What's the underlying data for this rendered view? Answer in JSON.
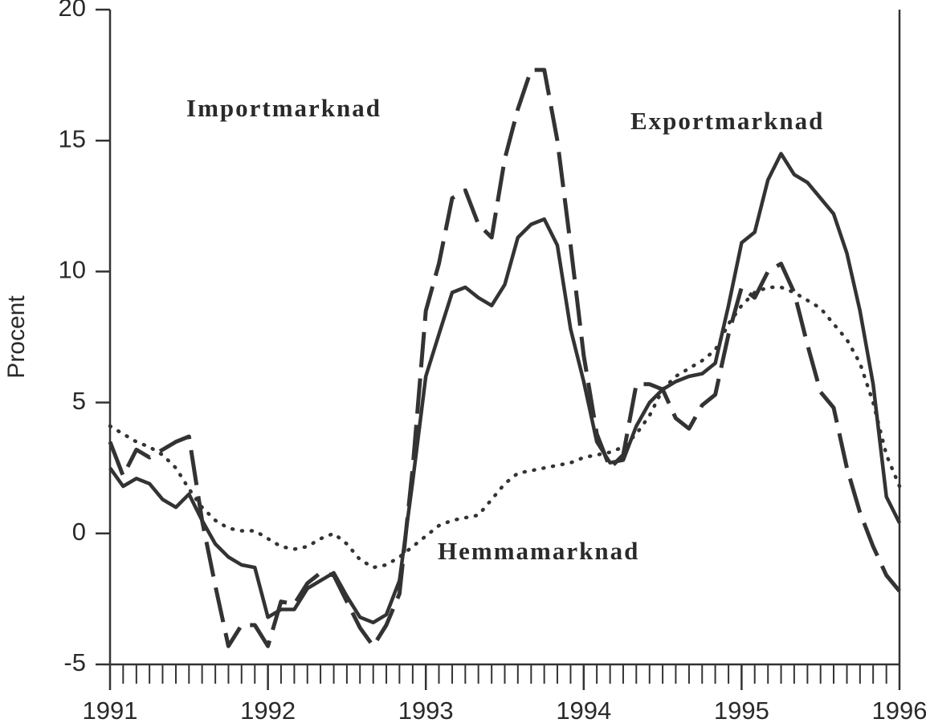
{
  "chart_data": {
    "type": "line",
    "y_label": "Procent",
    "x": [
      1991,
      1991.083,
      1991.167,
      1991.25,
      1991.333,
      1991.417,
      1991.5,
      1991.583,
      1991.667,
      1991.75,
      1991.833,
      1991.917,
      1992,
      1992.083,
      1992.167,
      1992.25,
      1992.333,
      1992.417,
      1992.5,
      1992.583,
      1992.667,
      1992.75,
      1992.833,
      1992.917,
      1993,
      1993.083,
      1993.167,
      1993.25,
      1993.333,
      1993.417,
      1993.5,
      1993.583,
      1993.667,
      1993.75,
      1993.833,
      1993.917,
      1994,
      1994.083,
      1994.167,
      1994.25,
      1994.333,
      1994.417,
      1994.5,
      1994.583,
      1994.667,
      1994.75,
      1994.833,
      1994.917,
      1995,
      1995.083,
      1995.167,
      1995.25,
      1995.333,
      1995.417,
      1995.5,
      1995.583,
      1995.667,
      1995.75,
      1995.833,
      1995.917,
      1996
    ],
    "series": [
      {
        "name": "Importmarknad",
        "color": "#333333",
        "style": "dashed",
        "values": [
          3.5,
          2.2,
          3.2,
          2.9,
          3.2,
          3.5,
          3.7,
          0.5,
          -2.0,
          -4.3,
          -3.5,
          -3.5,
          -4.3,
          -2.6,
          -2.7,
          -1.9,
          -1.5,
          -1.6,
          -2.6,
          -3.6,
          -4.3,
          -3.5,
          -2.3,
          2.5,
          8.5,
          10.3,
          12.8,
          13.1,
          11.8,
          11.3,
          14.3,
          16.2,
          17.7,
          17.7,
          15.0,
          11.0,
          6.8,
          3.8,
          2.5,
          3.0,
          5.7,
          5.7,
          5.5,
          4.4,
          4.0,
          4.9,
          5.3,
          7.6,
          9.4,
          9.0,
          10.0,
          10.3,
          9.2,
          7.2,
          5.4,
          4.8,
          2.5,
          0.8,
          -0.5,
          -1.6,
          -2.2
        ]
      },
      {
        "name": "Exportmarknad",
        "color": "#333333",
        "style": "solid",
        "values": [
          2.5,
          1.8,
          2.1,
          1.9,
          1.3,
          1.0,
          1.5,
          0.5,
          -0.4,
          -0.9,
          -1.2,
          -1.3,
          -3.2,
          -2.9,
          -2.9,
          -2.1,
          -1.8,
          -1.5,
          -2.4,
          -3.2,
          -3.4,
          -3.1,
          -1.8,
          2.0,
          6.0,
          7.6,
          9.2,
          9.4,
          9.0,
          8.7,
          9.5,
          11.3,
          11.8,
          12.0,
          11.0,
          7.8,
          5.8,
          3.5,
          2.7,
          2.8,
          4.1,
          5.0,
          5.5,
          5.8,
          6.0,
          6.1,
          6.5,
          8.7,
          11.1,
          11.5,
          13.5,
          14.5,
          13.7,
          13.4,
          12.8,
          12.2,
          10.7,
          8.5,
          5.7,
          1.4,
          0.4
        ]
      },
      {
        "name": "Hemmamarknad",
        "color": "#333333",
        "style": "dotted",
        "values": [
          4.1,
          3.8,
          3.5,
          3.3,
          3.0,
          2.5,
          1.7,
          1.0,
          0.5,
          0.2,
          0.1,
          0.1,
          -0.2,
          -0.5,
          -0.6,
          -0.5,
          -0.2,
          0.0,
          -0.4,
          -1.0,
          -1.3,
          -1.2,
          -0.9,
          -0.5,
          -0.1,
          0.3,
          0.5,
          0.6,
          0.7,
          1.3,
          1.9,
          2.3,
          2.4,
          2.5,
          2.6,
          2.7,
          2.9,
          3.0,
          3.1,
          3.3,
          3.8,
          4.5,
          5.5,
          6.0,
          6.3,
          6.6,
          7.0,
          8.0,
          8.7,
          9.2,
          9.4,
          9.4,
          9.2,
          8.9,
          8.6,
          8.0,
          7.4,
          6.5,
          5.0,
          3.0,
          1.8
        ]
      }
    ],
    "xlim": [
      1991,
      1996
    ],
    "xticks": [
      1991,
      1992,
      1993,
      1994,
      1995,
      1996
    ],
    "ylim": [
      -5,
      20
    ],
    "yticks": [
      -5,
      0,
      5,
      10,
      15,
      20
    ],
    "grid": false
  }
}
